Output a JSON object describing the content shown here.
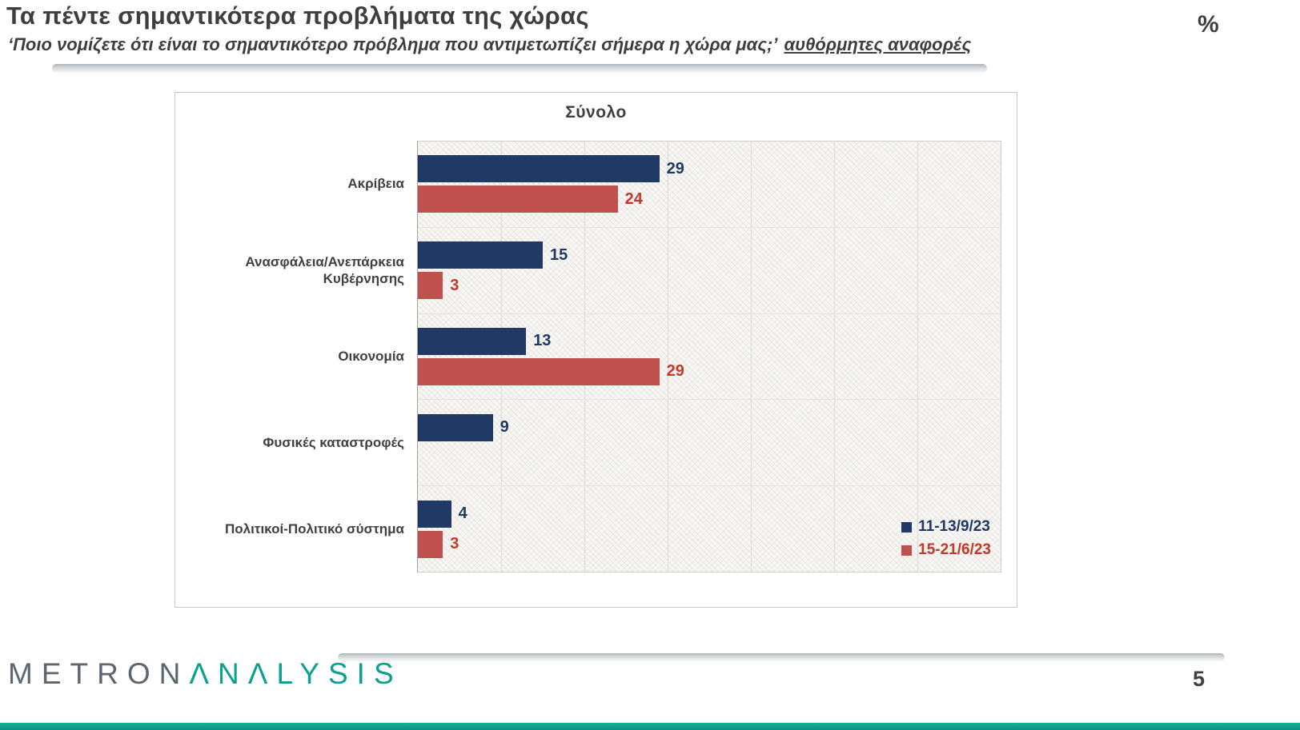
{
  "page": {
    "title": "Τα πέντε σημαντικότερα προβλήματα της χώρας",
    "subtitle_quote": "‘Ποιο νομίζετε ότι είναι το σημαντικότερο πρόβλημα που αντιμετωπίζει σήμερα η χώρα μας;’",
    "subtitle_underlined": "αυθόρμητες αναφορές",
    "percent_symbol": "%",
    "page_number": "5"
  },
  "logo": {
    "part1": "METRON",
    "part2": "ΛNΛLYSIS"
  },
  "colors": {
    "navy": "#1F3864",
    "red": "#C0504D",
    "navy_label": "#1F3864",
    "red_label": "#C0392B",
    "teal": "#0BA18D",
    "slate": "#5C6670",
    "title_gray": "#3E3E3E"
  },
  "chart_data": {
    "type": "bar",
    "orientation": "horizontal",
    "title": "Σύνολο",
    "categories": [
      "Ακρίβεια",
      "Ανασφάλεια/Ανεπάρκεια Κυβέρνησης",
      "Οικονομία",
      "Φυσικές καταστροφές",
      "Πολιτικοί-Πολιτικό σύστημα"
    ],
    "series": [
      {
        "name": "11-13/9/23",
        "color": "#1F3864",
        "label_color": "#1F3864",
        "values": [
          29,
          15,
          13,
          9,
          4
        ]
      },
      {
        "name": "15-21/6/23",
        "color": "#C0504D",
        "label_color": "#C0392B",
        "values": [
          24,
          3,
          29,
          null,
          3
        ]
      }
    ],
    "xlim": [
      0,
      70
    ],
    "gridline_step": 10,
    "grid": true,
    "legend_position": "bottom-right",
    "xlabel": "",
    "ylabel": ""
  }
}
